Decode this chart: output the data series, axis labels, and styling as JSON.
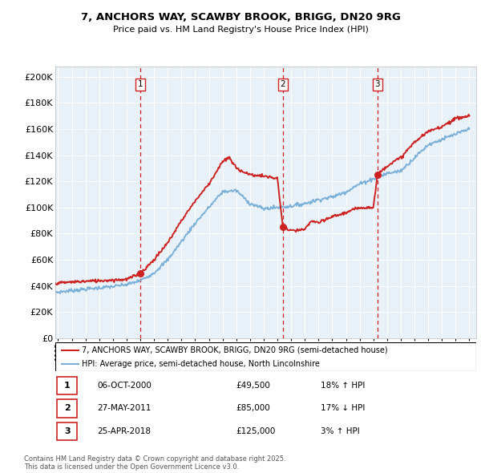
{
  "title1": "7, ANCHORS WAY, SCAWBY BROOK, BRIGG, DN20 9RG",
  "title2": "Price paid vs. HM Land Registry's House Price Index (HPI)",
  "ytick_vals": [
    0,
    20000,
    40000,
    60000,
    80000,
    100000,
    120000,
    140000,
    160000,
    180000,
    200000
  ],
  "ytick_labels": [
    "£0",
    "£20K",
    "£40K",
    "£60K",
    "£80K",
    "£100K",
    "£120K",
    "£140K",
    "£160K",
    "£180K",
    "£200K"
  ],
  "xlim_start": 1994.8,
  "xlim_end": 2025.5,
  "ylim": [
    0,
    208000
  ],
  "chart_bg": "#e8f0f8",
  "hpi_color": "#7ab0d8",
  "price_color": "#cc2222",
  "vline_color": "#cc2222",
  "purchases": [
    {
      "label": "1",
      "date_x": 2001.0,
      "price": 49500,
      "date_str": "06-OCT-2000",
      "pct": "18% ↑ HPI"
    },
    {
      "label": "2",
      "date_x": 2011.4,
      "price": 85000,
      "date_str": "27-MAY-2011",
      "pct": "17% ↓ HPI"
    },
    {
      "label": "3",
      "date_x": 2018.3,
      "price": 125000,
      "date_str": "25-APR-2018",
      "pct": "3% ↑ HPI"
    }
  ],
  "legend_line1": "7, ANCHORS WAY, SCAWBY BROOK, BRIGG, DN20 9RG (semi-detached house)",
  "legend_line2": "HPI: Average price, semi-detached house, North Lincolnshire",
  "footer": "Contains HM Land Registry data © Crown copyright and database right 2025.\nThis data is licensed under the Open Government Licence v3.0.",
  "table_rows": [
    [
      "1",
      "06-OCT-2000",
      "£49,500",
      "18% ↑ HPI"
    ],
    [
      "2",
      "27-MAY-2011",
      "£85,000",
      "17% ↓ HPI"
    ],
    [
      "3",
      "25-APR-2018",
      "£125,000",
      "3% ↑ HPI"
    ]
  ],
  "hpi_keypoints_x": [
    1994.8,
    1996,
    1997,
    1998,
    1999,
    2000,
    2001,
    2002,
    2003,
    2004,
    2005,
    2006,
    2007,
    2008,
    2009,
    2010,
    2011,
    2012,
    2013,
    2014,
    2015,
    2016,
    2017,
    2018,
    2019,
    2020,
    2021,
    2022,
    2023,
    2024,
    2025
  ],
  "hpi_keypoints_y": [
    35000,
    36500,
    37500,
    38500,
    39500,
    41000,
    44000,
    50000,
    60000,
    74000,
    88000,
    100000,
    112000,
    113000,
    103000,
    99000,
    100000,
    101000,
    103000,
    106000,
    108000,
    112000,
    118000,
    122000,
    126000,
    128000,
    138000,
    148000,
    152000,
    156000,
    160000
  ],
  "price_keypoints_x": [
    1994.8,
    1996,
    1997,
    1998,
    1999,
    2000,
    2001.0,
    2002,
    2003,
    2004,
    2005,
    2006,
    2007,
    2007.5,
    2008,
    2009,
    2010,
    2011.0,
    2011.4,
    2012,
    2013,
    2013.5,
    2014,
    2015,
    2016,
    2017,
    2018.0,
    2018.3,
    2019,
    2020,
    2021,
    2022,
    2023,
    2024,
    2025
  ],
  "price_keypoints_y": [
    42000,
    43000,
    43500,
    44000,
    44500,
    45000,
    49500,
    60000,
    73000,
    90000,
    105000,
    118000,
    135000,
    138000,
    130000,
    125000,
    124000,
    122000,
    85000,
    82000,
    83000,
    90000,
    88000,
    93000,
    96000,
    100000,
    100000,
    125000,
    132000,
    138000,
    150000,
    158000,
    162000,
    168000,
    170000
  ]
}
